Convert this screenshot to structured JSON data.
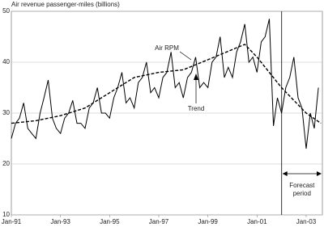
{
  "chart_data": {
    "type": "line",
    "y_axis_label": "Air revenue passenger-miles (billions)",
    "xlim": [
      1991,
      2003.66
    ],
    "ylim": [
      10,
      50
    ],
    "yticks": [
      10,
      20,
      30,
      40,
      50
    ],
    "xticks": [
      {
        "value": 1991,
        "label": "Jan-91"
      },
      {
        "value": 1993,
        "label": "Jan-93"
      },
      {
        "value": 1995,
        "label": "Jan-95"
      },
      {
        "value": 1997,
        "label": "Jan-97"
      },
      {
        "value": 1999,
        "label": "Jan-99"
      },
      {
        "value": 2001,
        "label": "Jan-01"
      },
      {
        "value": 2003,
        "label": "Jan-03"
      }
    ],
    "grid": true,
    "series": [
      {
        "name": "Air RPM",
        "color": "#000000",
        "dashed": false,
        "x": [
          1991,
          1991.17,
          1991.33,
          1991.5,
          1991.67,
          1991.83,
          1992,
          1992.17,
          1992.33,
          1992.5,
          1992.67,
          1992.83,
          1993,
          1993.17,
          1993.33,
          1993.5,
          1993.67,
          1993.83,
          1994,
          1994.17,
          1994.33,
          1994.5,
          1994.67,
          1994.83,
          1995,
          1995.17,
          1995.33,
          1995.5,
          1995.67,
          1995.83,
          1996,
          1996.17,
          1996.33,
          1996.5,
          1996.67,
          1996.83,
          1997,
          1997.17,
          1997.33,
          1997.5,
          1997.67,
          1997.83,
          1998,
          1998.17,
          1998.33,
          1998.5,
          1998.67,
          1998.83,
          1999,
          1999.17,
          1999.33,
          1999.5,
          1999.67,
          1999.83,
          2000,
          2000.17,
          2000.33,
          2000.5,
          2000.67,
          2000.83,
          2001,
          2001.17,
          2001.33,
          2001.5,
          2001.67,
          2001.83,
          2002,
          2002.17,
          2002.33,
          2002.5,
          2002.67,
          2002.83,
          2003,
          2003.17,
          2003.33,
          2003.5
        ],
        "values": [
          25,
          28,
          29,
          32,
          27,
          26,
          25,
          30,
          33,
          36.5,
          29,
          27,
          26,
          29,
          30,
          32.5,
          28,
          28,
          27,
          31,
          32,
          35,
          30,
          30,
          29,
          33,
          35,
          38,
          32,
          33,
          31,
          36,
          37,
          40,
          34,
          35,
          33,
          37,
          38,
          42,
          35,
          36,
          33,
          37,
          38,
          41,
          35,
          36,
          35,
          40,
          41,
          45,
          37,
          39,
          37,
          42,
          44,
          47.5,
          40,
          41,
          38,
          44,
          45,
          48.5,
          27.5,
          33,
          30,
          35,
          37,
          41,
          33,
          31,
          23,
          30,
          27,
          35
        ]
      },
      {
        "name": "Trend",
        "color": "#000000",
        "dashed": true,
        "x": [
          1991,
          1992,
          1993,
          1994,
          1995,
          1996,
          1997,
          1998,
          1999,
          2000,
          2000.5,
          2001,
          2002,
          2003,
          2003.6
        ],
        "values": [
          28,
          28.5,
          29.5,
          31,
          34,
          37,
          38,
          38.5,
          40.5,
          42.5,
          43.5,
          41,
          35,
          30,
          28
        ]
      }
    ],
    "forecast_start": 2002,
    "forecast_label": [
      "Forecast",
      "period"
    ]
  }
}
